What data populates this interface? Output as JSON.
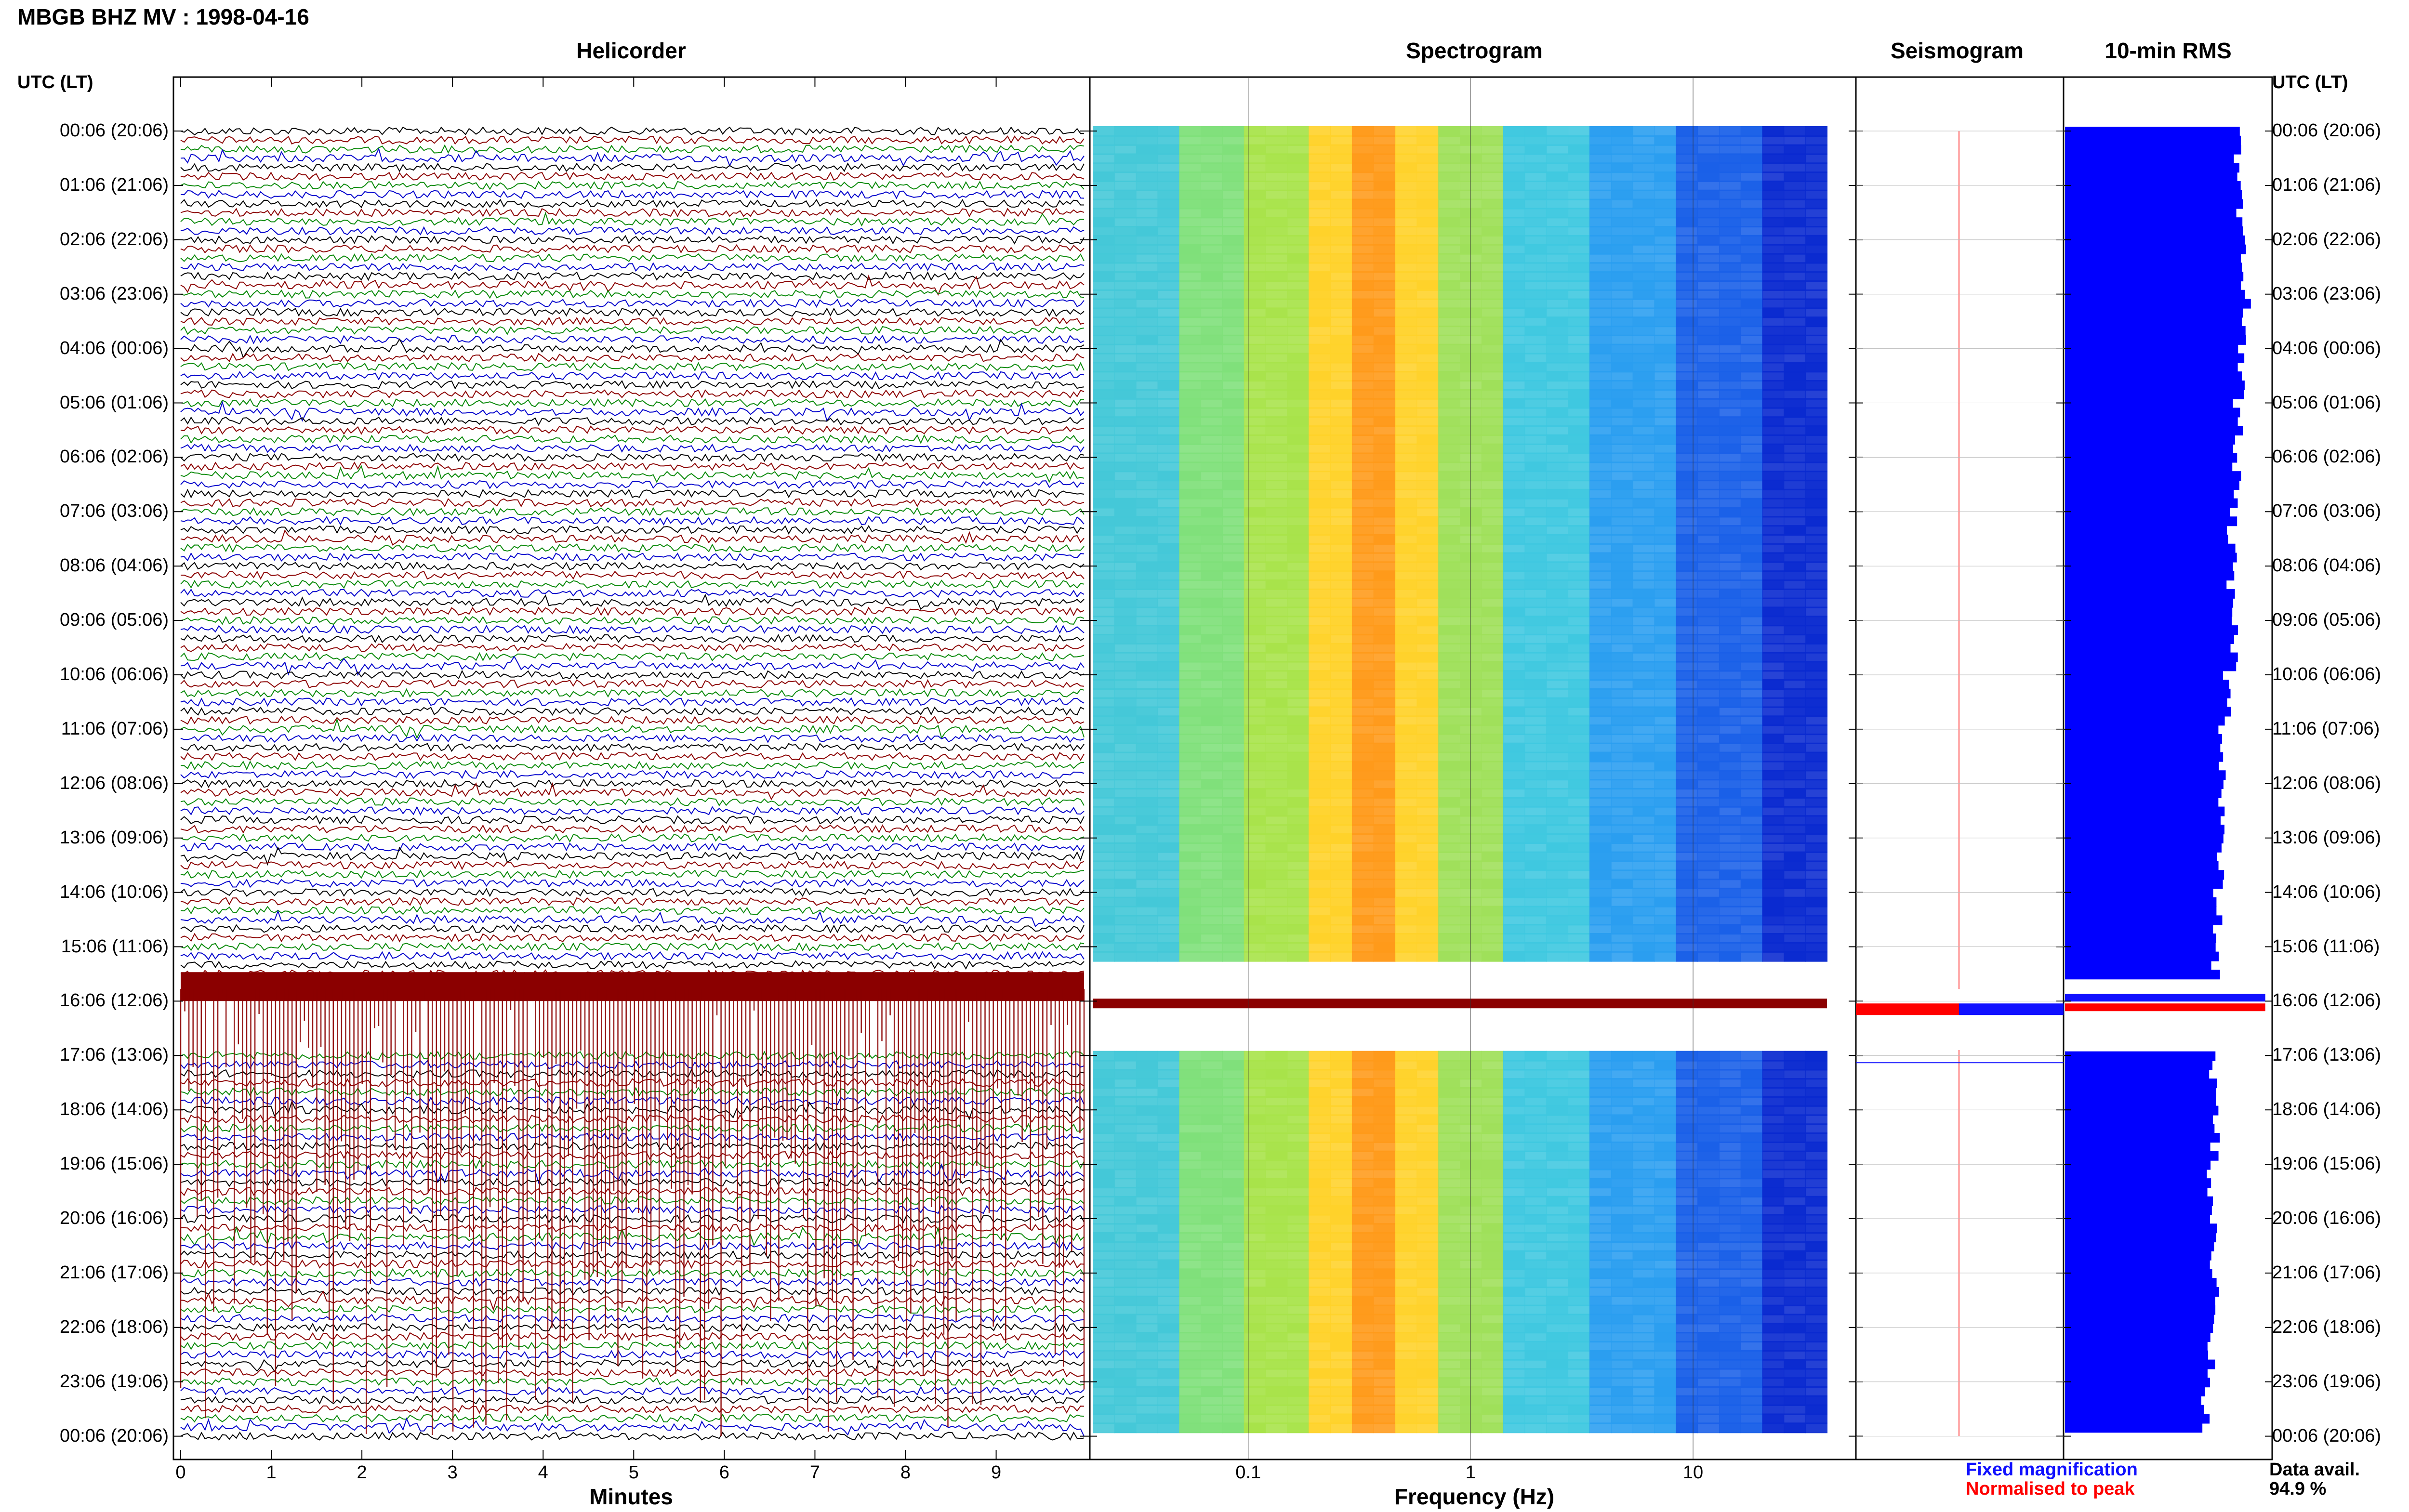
{
  "title": "MBGB BHZ MV : 1998-04-16",
  "panels": {
    "helicorder": "Helicorder",
    "spectrogram": "Spectrogram",
    "seismogram": "Seismogram",
    "rms": "10-min RMS"
  },
  "axis_headers": {
    "left": "UTC (LT)",
    "right": "UTC (LT)"
  },
  "x_labels": {
    "helicorder": "Minutes",
    "spectrogram": "Frequency (Hz)"
  },
  "legend": {
    "fixed": "Fixed magnification",
    "normalised": "Normalised to peak",
    "fixed_color": "#1010ff",
    "normalised_color": "#ff0000"
  },
  "data_avail": {
    "label": "Data avail.",
    "value": "94.9 %"
  },
  "colors": {
    "trace_black": "#000000",
    "trace_red": "#8b0000",
    "trace_green": "#0a8a0a",
    "trace_blue": "#0000cc",
    "rms_bar": "#0000ff",
    "spec_low": "#00008b",
    "spec_high": "#ffd700"
  },
  "chart_data": [
    {
      "type": "line",
      "name": "helicorder",
      "xlabel": "Minutes",
      "xlim": [
        0,
        10
      ],
      "x_ticks": [
        "0",
        "1",
        "2",
        "3",
        "4",
        "5",
        "6",
        "7",
        "8",
        "9"
      ],
      "y_ticks": [
        "00:06 (20:06)",
        "01:06 (21:06)",
        "02:06 (22:06)",
        "03:06 (23:06)",
        "04:06 (00:06)",
        "05:06 (01:06)",
        "06:06 (02:06)",
        "07:06 (03:06)",
        "08:06 (04:06)",
        "09:06 (05:06)",
        "10:06 (06:06)",
        "11:06 (07:06)",
        "12:06 (08:06)",
        "13:06 (09:06)",
        "14:06 (10:06)",
        "15:06 (11:06)",
        "16:06 (12:06)",
        "17:06 (13:06)",
        "18:06 (14:06)",
        "19:06 (15:06)",
        "20:06 (16:06)",
        "21:06 (17:06)",
        "22:06 (18:06)",
        "23:06 (19:06)",
        "00:06 (20:06)"
      ],
      "rows_per_hour": 6,
      "row_colors": [
        "black",
        "red",
        "green",
        "blue"
      ],
      "gap_hours": [
        15.6,
        16.9
      ]
    },
    {
      "type": "heatmap",
      "name": "spectrogram",
      "xlabel": "Frequency (Hz)",
      "x_scale": "log",
      "xlim": [
        0.02,
        40
      ],
      "x_ticks": [
        "0.1",
        "1",
        "10"
      ],
      "peak_band_hz": [
        0.2,
        0.4
      ]
    },
    {
      "type": "bar",
      "name": "10-min RMS",
      "orientation": "horizontal",
      "relative_values_per_hour": [
        0.82,
        0.83,
        0.85,
        0.87,
        0.84,
        0.83,
        0.82,
        0.8,
        0.79,
        0.81,
        0.78,
        0.76,
        0.75,
        0.74,
        0.73,
        0.72,
        0.7,
        0.71,
        0.72,
        0.7,
        0.71,
        0.72,
        0.7,
        0.67,
        0.63
      ]
    }
  ]
}
